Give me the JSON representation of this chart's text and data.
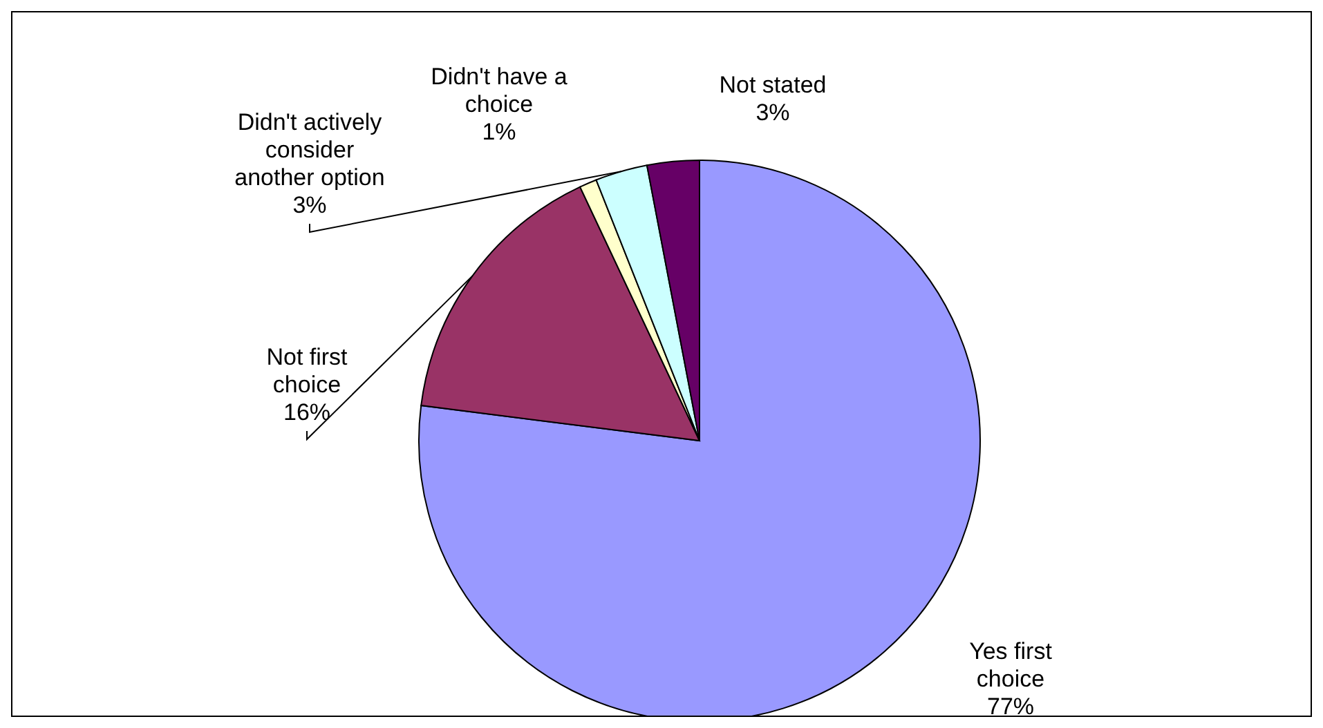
{
  "chart_data": {
    "type": "pie",
    "categories": [
      "Yes first choice",
      "Not first choice",
      "Didn't have a choice",
      "Didn't actively consider another option",
      "Not stated"
    ],
    "values": [
      77,
      16,
      1,
      3,
      3
    ],
    "colors": [
      "#9999ff",
      "#993366",
      "#ffffcc",
      "#ccffff",
      "#660066"
    ],
    "value_labels": [
      "77%",
      "16%",
      "1%",
      "3%",
      "3%"
    ],
    "legend": false
  }
}
